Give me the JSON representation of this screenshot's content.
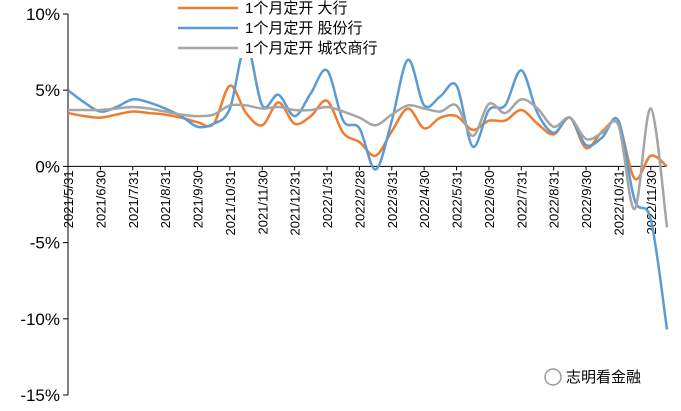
{
  "chart_data": {
    "type": "line",
    "categories": [
      "2021/5/31",
      null,
      "2021/6/30",
      null,
      "2021/7/31",
      null,
      "2021/8/31",
      null,
      "2021/9/30",
      null,
      "2021/10/31",
      null,
      "2021/11/30",
      null,
      "2021/12/31",
      null,
      "2022/1/31",
      null,
      "2022/2/28",
      null,
      "2022/3/31",
      null,
      "2022/4/30",
      null,
      "2022/5/31",
      null,
      "2022/6/30",
      null,
      "2022/7/31",
      null,
      "2022/8/31",
      null,
      "2022/9/30",
      null,
      "2022/10/31",
      null,
      "2022/11/30",
      null
    ],
    "series": [
      {
        "name": "1个月定开 大行",
        "color": "#ED7D31",
        "values": [
          3.5,
          3.3,
          3.2,
          3.4,
          3.6,
          3.5,
          3.4,
          3.2,
          2.9,
          2.8,
          5.3,
          3.5,
          2.7,
          4.2,
          2.8,
          3.3,
          4.3,
          2.2,
          1.6,
          0.7,
          2.3,
          3.8,
          2.5,
          3.2,
          3.3,
          2.4,
          3.0,
          3.0,
          3.7,
          2.8,
          2.1,
          3.2,
          1.2,
          2.3,
          2.8,
          -0.8,
          0.7,
          0.0
        ]
      },
      {
        "name": "1个月定开 股份行",
        "color": "#5B9BD5",
        "values": [
          5.0,
          4.2,
          3.6,
          3.9,
          4.4,
          4.2,
          3.8,
          3.3,
          2.6,
          2.8,
          3.8,
          8.0,
          4.0,
          4.7,
          3.3,
          4.8,
          6.3,
          3.0,
          2.5,
          -0.2,
          3.0,
          7.0,
          4.0,
          4.6,
          5.3,
          1.3,
          3.7,
          4.0,
          6.3,
          3.5,
          2.2,
          3.2,
          1.4,
          1.9,
          3.0,
          -2.2,
          -3.5,
          -10.7
        ]
      },
      {
        "name": "1个月定开 城农商行",
        "color": "#A5A5A5",
        "values": [
          3.7,
          3.7,
          3.7,
          3.8,
          3.9,
          3.8,
          3.6,
          3.4,
          3.3,
          3.4,
          4.0,
          4.0,
          3.8,
          3.9,
          3.7,
          3.7,
          3.9,
          3.6,
          3.2,
          2.7,
          3.4,
          4.0,
          3.8,
          3.6,
          4.0,
          2.0,
          4.1,
          3.5,
          4.4,
          3.8,
          2.6,
          3.2,
          1.8,
          2.2,
          2.7,
          -2.8,
          3.8,
          -4.0
        ]
      }
    ],
    "ylim": [
      -15,
      10
    ],
    "yticks": [
      {
        "value": -15,
        "label": "-15%"
      },
      {
        "value": -10,
        "label": "-10%"
      },
      {
        "value": -5,
        "label": "-5%"
      },
      {
        "value": 0,
        "label": "0%"
      },
      {
        "value": 5,
        "label": "5%"
      },
      {
        "value": 10,
        "label": "10%"
      }
    ],
    "watermark": "志明看金融"
  }
}
